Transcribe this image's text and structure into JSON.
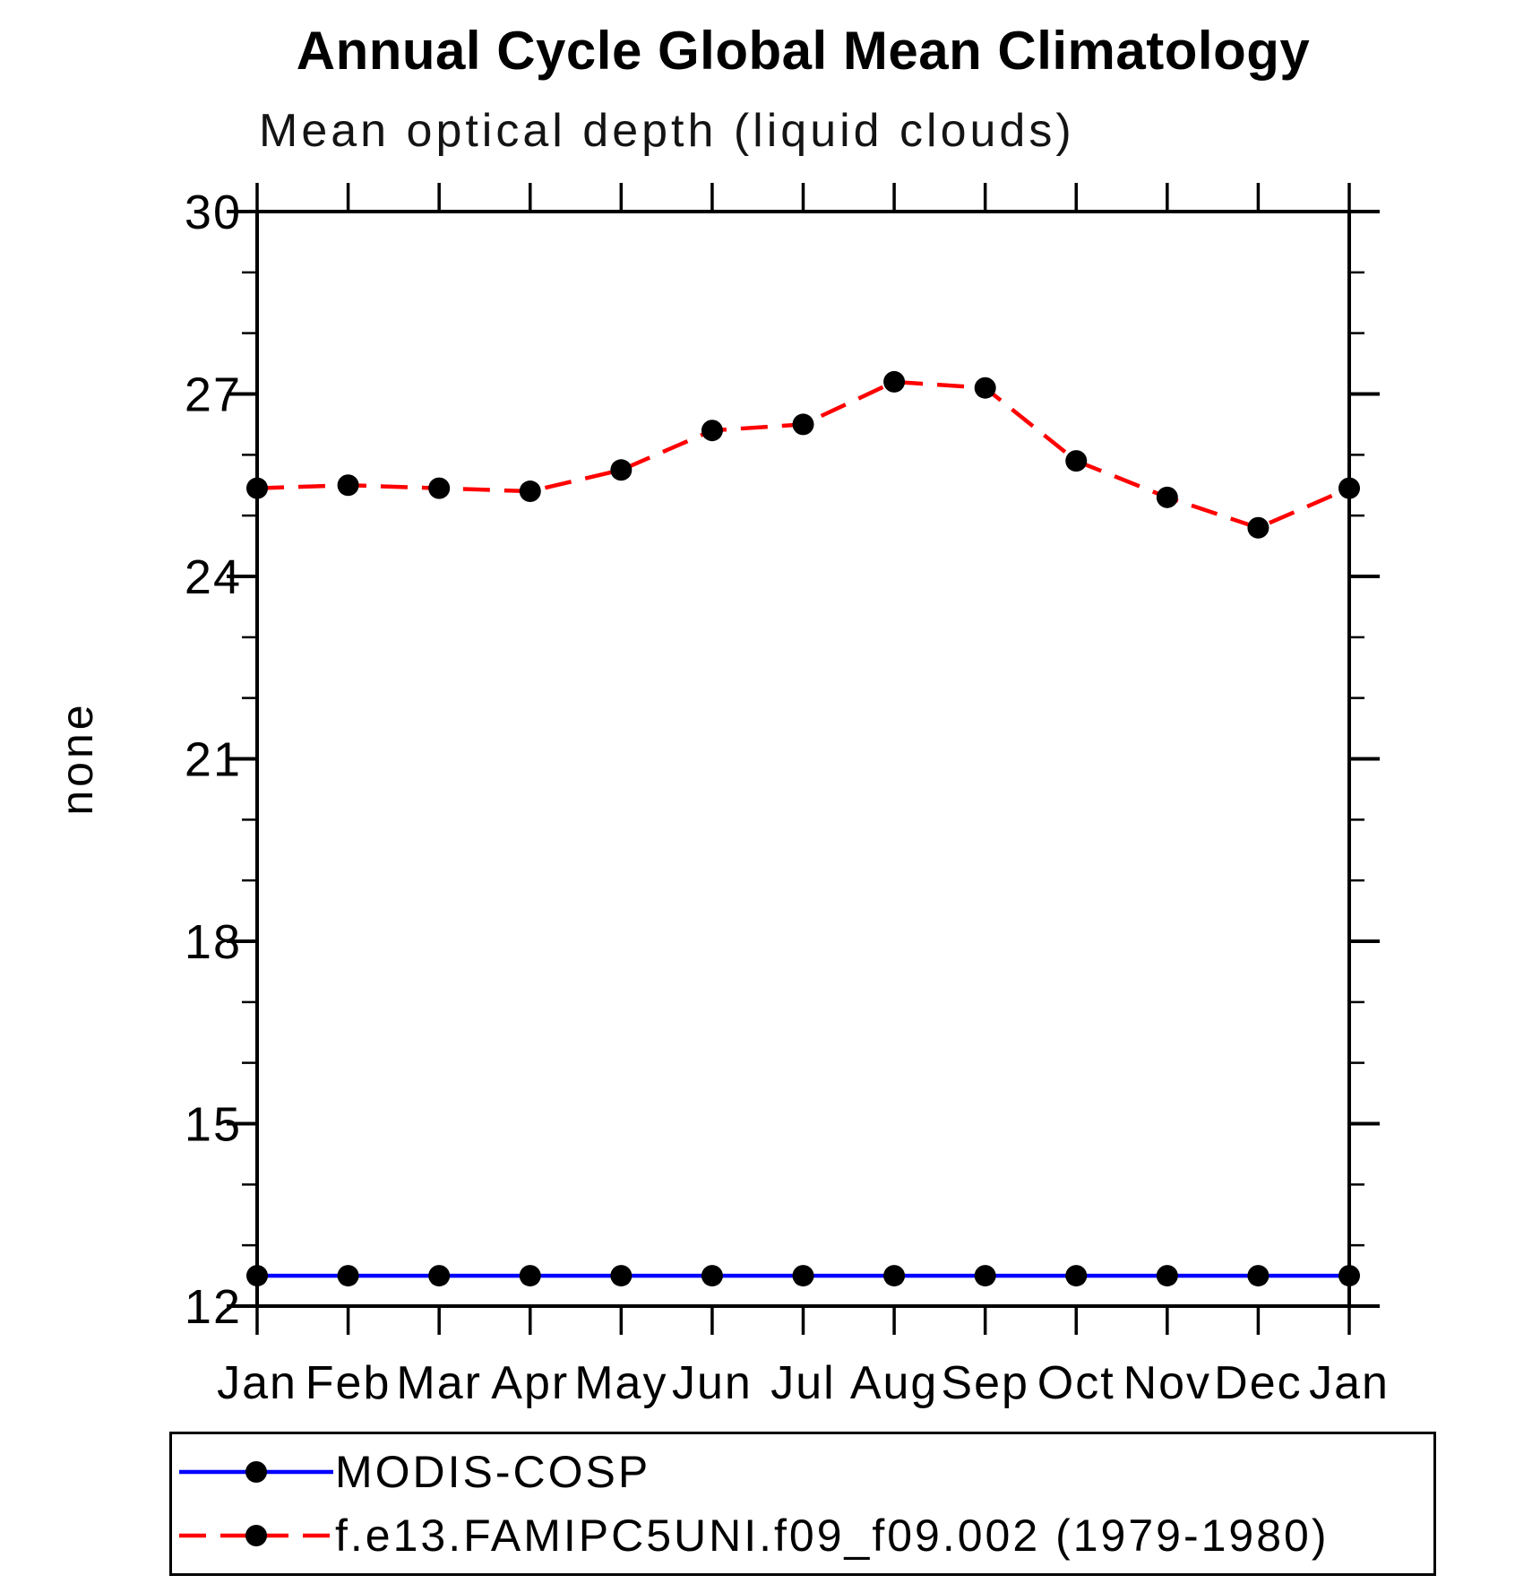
{
  "page": {
    "background": "#ffffff"
  },
  "chart_data": {
    "type": "line",
    "title": "Annual Cycle Global Mean Climatology",
    "subtitle": "Mean optical depth (liquid clouds)",
    "xlabel": "",
    "ylabel": "none",
    "categories": [
      "Jan",
      "Feb",
      "Mar",
      "Apr",
      "May",
      "Jun",
      "Jul",
      "Aug",
      "Sep",
      "Oct",
      "Nov",
      "Dec",
      "Jan"
    ],
    "ylim": [
      12,
      30
    ],
    "yticks": [
      12,
      15,
      18,
      21,
      24,
      27,
      30
    ],
    "ytick_step_major": 3,
    "ytick_step_minor": 1,
    "grid": false,
    "legend_position": "bottom",
    "axis_color": "#000000",
    "marker": "filled-circle",
    "series": [
      {
        "name": "MODIS-COSP",
        "color": "#0000ff",
        "line_style": "solid",
        "marker_color": "#000000",
        "values": [
          12.5,
          12.5,
          12.5,
          12.5,
          12.5,
          12.5,
          12.5,
          12.5,
          12.5,
          12.5,
          12.5,
          12.5,
          12.5
        ]
      },
      {
        "name": "f.e13.FAMIPC5UNI.f09_f09.002 (1979-1980)",
        "color": "#ff0000",
        "line_style": "dashed",
        "marker_color": "#000000",
        "values": [
          25.45,
          25.5,
          25.45,
          25.4,
          25.75,
          26.4,
          26.5,
          27.2,
          27.1,
          25.9,
          25.3,
          24.8,
          25.45
        ]
      }
    ]
  }
}
